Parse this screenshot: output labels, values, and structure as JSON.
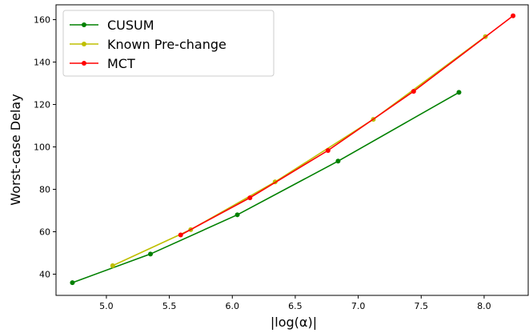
{
  "chart_data": {
    "type": "line",
    "xlabel": "|log(α)|",
    "ylabel": "Worst-case Delay",
    "xlim": [
      4.6,
      8.35
    ],
    "ylim": [
      30,
      167
    ],
    "xticks": [
      5.0,
      5.5,
      6.0,
      6.5,
      7.0,
      7.5,
      8.0
    ],
    "yticks": [
      40,
      60,
      80,
      100,
      120,
      140,
      160
    ],
    "grid": false,
    "legend_position": "top-left",
    "series": [
      {
        "name": "CUSUM",
        "color": "#008000",
        "x": [
          4.73,
          5.35,
          6.04,
          6.84,
          7.8
        ],
        "y": [
          36,
          49.5,
          68,
          93.3,
          125.7
        ]
      },
      {
        "name": "Known Pre-change",
        "color": "#bfbf00",
        "x": [
          5.05,
          5.67,
          6.34,
          7.12,
          8.01
        ],
        "y": [
          44,
          61,
          83.5,
          113,
          152
        ]
      },
      {
        "name": "MCT",
        "color": "#ff0000",
        "x": [
          5.59,
          6.14,
          6.76,
          7.44,
          8.23
        ],
        "y": [
          58.5,
          76,
          98.3,
          126.2,
          161.8
        ]
      }
    ]
  }
}
